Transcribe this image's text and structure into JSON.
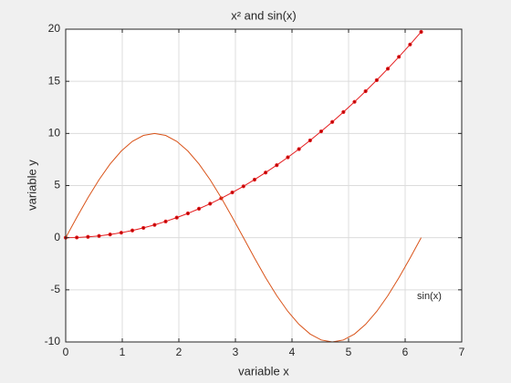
{
  "chart_data": {
    "type": "line",
    "title": "x² and sin(x)",
    "xlabel": "variable x",
    "ylabel": "variable y",
    "annotations": [
      "sin(x)"
    ],
    "x": [
      0,
      0.196,
      0.393,
      0.589,
      0.785,
      0.982,
      1.178,
      1.374,
      1.571,
      1.767,
      1.963,
      2.16,
      2.356,
      2.553,
      2.749,
      2.945,
      3.142,
      3.338,
      3.534,
      3.731,
      3.927,
      4.123,
      4.32,
      4.516,
      4.712,
      4.909,
      5.105,
      5.301,
      5.498,
      5.694,
      5.89,
      6.087,
      6.283
    ],
    "series": [
      {
        "color": "#e41a1c",
        "marker": true,
        "values": [
          0,
          0.02,
          0.08,
          0.17,
          0.31,
          0.48,
          0.69,
          0.94,
          1.23,
          1.56,
          1.93,
          2.33,
          2.78,
          3.26,
          3.78,
          4.34,
          4.93,
          5.57,
          6.25,
          6.96,
          7.71,
          8.5,
          9.33,
          10.2,
          11.1,
          12.05,
          13.03,
          14.05,
          15.11,
          16.21,
          17.35,
          18.53,
          19.74
        ]
      },
      {
        "color": "#d95319",
        "marker": false,
        "values": [
          0,
          1.95,
          3.83,
          5.56,
          7.07,
          8.31,
          9.24,
          9.81,
          10,
          9.81,
          9.24,
          8.31,
          7.07,
          5.56,
          3.83,
          1.95,
          0,
          -1.95,
          -3.83,
          -5.56,
          -7.07,
          -8.31,
          -9.24,
          -9.81,
          -10,
          -9.81,
          -9.24,
          -8.31,
          -7.07,
          -5.56,
          -3.83,
          -1.95,
          0
        ]
      }
    ],
    "xlim": [
      0,
      7
    ],
    "xticks": [
      0,
      1,
      2,
      3,
      4,
      5,
      6,
      7
    ],
    "ylim": [
      -10,
      20
    ],
    "yticks": [
      -10,
      -5,
      0,
      5,
      10,
      15,
      20
    ],
    "grid": true
  }
}
